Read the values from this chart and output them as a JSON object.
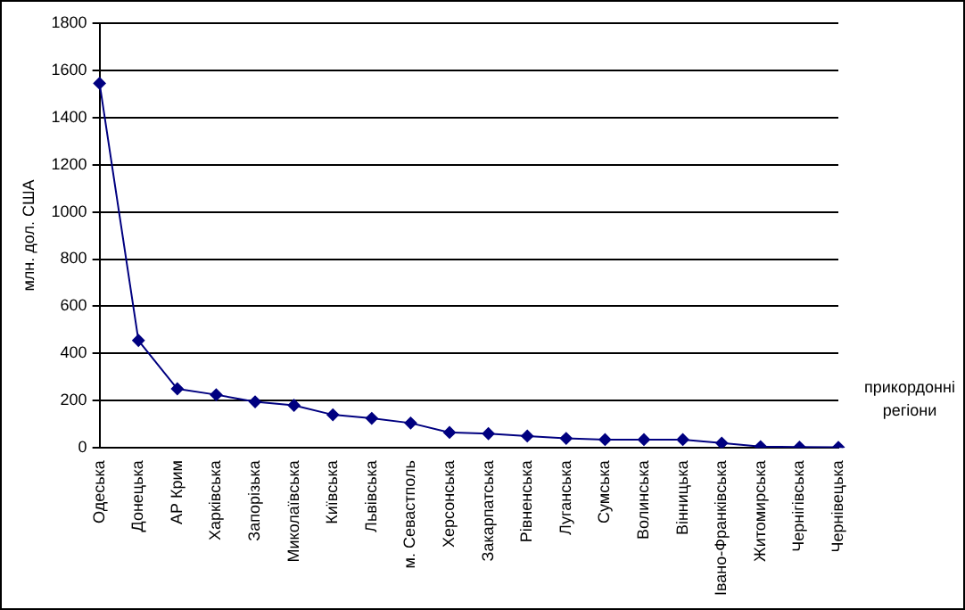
{
  "chart_data": {
    "type": "line",
    "ylabel": "млн. дол. США",
    "xlabel": "прикордонні регіони",
    "categories": [
      "Одеська",
      "Донецька",
      "АР Крим",
      "Харківська",
      "Запорізька",
      "Миколаївська",
      "Київська",
      "Львівська",
      "м. Севастполь",
      "Херсонська",
      "Закарпатська",
      "Рівненська",
      "Луганська",
      "Сумська",
      "Волинська",
      "Вінницька",
      "Івано-Франківська",
      "Житомирська",
      "Чернігівська",
      "Чернівецька"
    ],
    "series": [
      {
        "color": "#000080",
        "values": [
          1545,
          455,
          250,
          225,
          195,
          180,
          140,
          125,
          105,
          65,
          60,
          50,
          40,
          35,
          35,
          35,
          20,
          5,
          3,
          2
        ]
      }
    ],
    "ylim": [
      0,
      1800
    ],
    "yticks": [
      0,
      200,
      400,
      600,
      800,
      1000,
      1200,
      1400,
      1600,
      1800
    ],
    "grid": "y",
    "legend": false,
    "marker": "diamond",
    "line_style": "solid"
  }
}
